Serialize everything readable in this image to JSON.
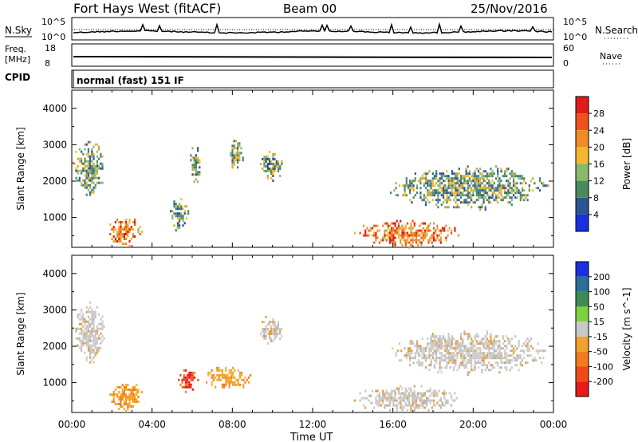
{
  "header": {
    "title": "Fort Hays West (fitACF)",
    "beam": "Beam 00",
    "date": "25/Nov/2016"
  },
  "noise_panel": {
    "left_label": "N.Sky",
    "right_label": "N.Search",
    "left_ticks": [
      "10^5",
      "10^0"
    ],
    "right_ticks": [
      "10^5",
      "10^0"
    ]
  },
  "freq_panel": {
    "left_label_1": "Freq.",
    "left_label_2": "[MHz]",
    "right_label": "Nave",
    "left_ticks": [
      "18",
      "8"
    ],
    "right_ticks": [
      "60",
      "0"
    ]
  },
  "cpid": {
    "label": "CPID",
    "text": "normal (fast) 151 IF"
  },
  "x_axis": {
    "label": "Time UT",
    "ticks": [
      "00:00",
      "04:00",
      "08:00",
      "12:00",
      "16:00",
      "20:00",
      "00:00"
    ]
  },
  "chart_data": [
    {
      "type": "heatmap",
      "panel": "power",
      "ylabel": "Slant Range [km]",
      "yticks": [
        1000,
        2000,
        3000,
        4000
      ],
      "ylim": [
        180,
        4500
      ],
      "xlim_hours": [
        0,
        24
      ],
      "colorbar": {
        "label": "Power [dB]",
        "ticks": [
          "28",
          "24",
          "20",
          "16",
          "12",
          "8",
          "4"
        ],
        "colors": [
          "#e21a1a",
          "#f0521e",
          "#f28a26",
          "#f5b731",
          "#8ab86d",
          "#4a8a5c",
          "#2a5590",
          "#1a2fe0"
        ]
      },
      "regions": [
        {
          "t0": 0.0,
          "t1": 1.7,
          "r0": 1500,
          "r1": 3300,
          "level": "mixed"
        },
        {
          "t0": 1.7,
          "t1": 3.6,
          "r0": 200,
          "r1": 1100,
          "level": "high"
        },
        {
          "t0": 4.8,
          "t1": 5.8,
          "r0": 600,
          "r1": 1600,
          "level": "mixed"
        },
        {
          "t0": 5.8,
          "t1": 6.4,
          "r0": 1800,
          "r1": 3200,
          "level": "mixed"
        },
        {
          "t0": 7.7,
          "t1": 8.6,
          "r0": 2300,
          "r1": 3200,
          "level": "mixed"
        },
        {
          "t0": 9.2,
          "t1": 10.6,
          "r0": 2000,
          "r1": 2900,
          "level": "mixed"
        },
        {
          "t0": 13.8,
          "t1": 19.5,
          "r0": 180,
          "r1": 1000,
          "level": "high"
        },
        {
          "t0": 15.5,
          "t1": 24.0,
          "r0": 1200,
          "r1": 2500,
          "level": "mixed"
        }
      ]
    },
    {
      "type": "heatmap",
      "panel": "velocity",
      "ylabel": "Slant Range [km]",
      "yticks": [
        1000,
        2000,
        3000,
        4000
      ],
      "ylim": [
        180,
        4500
      ],
      "xlim_hours": [
        0,
        24
      ],
      "colorbar": {
        "label": "Velocity [m s^-1]",
        "ticks": [
          "200",
          "100",
          "50",
          "15",
          "-15",
          "-50",
          "-100",
          "-200"
        ],
        "colors": [
          "#1a2fe0",
          "#2a6f9a",
          "#3f8a55",
          "#7fd23f",
          "#c8c8c8",
          "#f2a12a",
          "#f27c1e",
          "#f04a1a",
          "#e81a1a"
        ]
      },
      "regions": [
        {
          "t0": 0.0,
          "t1": 1.7,
          "r0": 1500,
          "r1": 3300,
          "level": "grey"
        },
        {
          "t0": 1.7,
          "t1": 3.6,
          "r0": 200,
          "r1": 1100,
          "level": "orange"
        },
        {
          "t0": 5.2,
          "t1": 6.3,
          "r0": 700,
          "r1": 1500,
          "level": "red"
        },
        {
          "t0": 6.5,
          "t1": 9.0,
          "r0": 800,
          "r1": 1500,
          "level": "orange"
        },
        {
          "t0": 9.2,
          "t1": 10.6,
          "r0": 2000,
          "r1": 2900,
          "level": "grey"
        },
        {
          "t0": 13.8,
          "t1": 19.5,
          "r0": 180,
          "r1": 1000,
          "level": "grey"
        },
        {
          "t0": 15.5,
          "t1": 24.0,
          "r0": 1200,
          "r1": 2500,
          "level": "grey"
        }
      ]
    }
  ]
}
